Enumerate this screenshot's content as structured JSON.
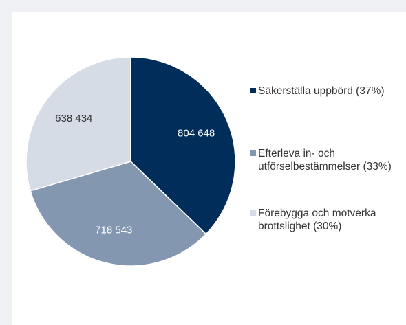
{
  "chart_data": {
    "type": "pie",
    "categories": [
      "Säkerställa uppbörd (37%)",
      "Efterleva in- och utförselbestämmelser (33%)",
      "Förebygga och motverka brottslighet (30%)"
    ],
    "values": [
      804648,
      718543,
      638434
    ],
    "value_labels": [
      "804 648",
      "718 543",
      "638 434"
    ],
    "colors": [
      "#002d5a",
      "#8497b0",
      "#d6dce5"
    ],
    "legend": "right"
  }
}
